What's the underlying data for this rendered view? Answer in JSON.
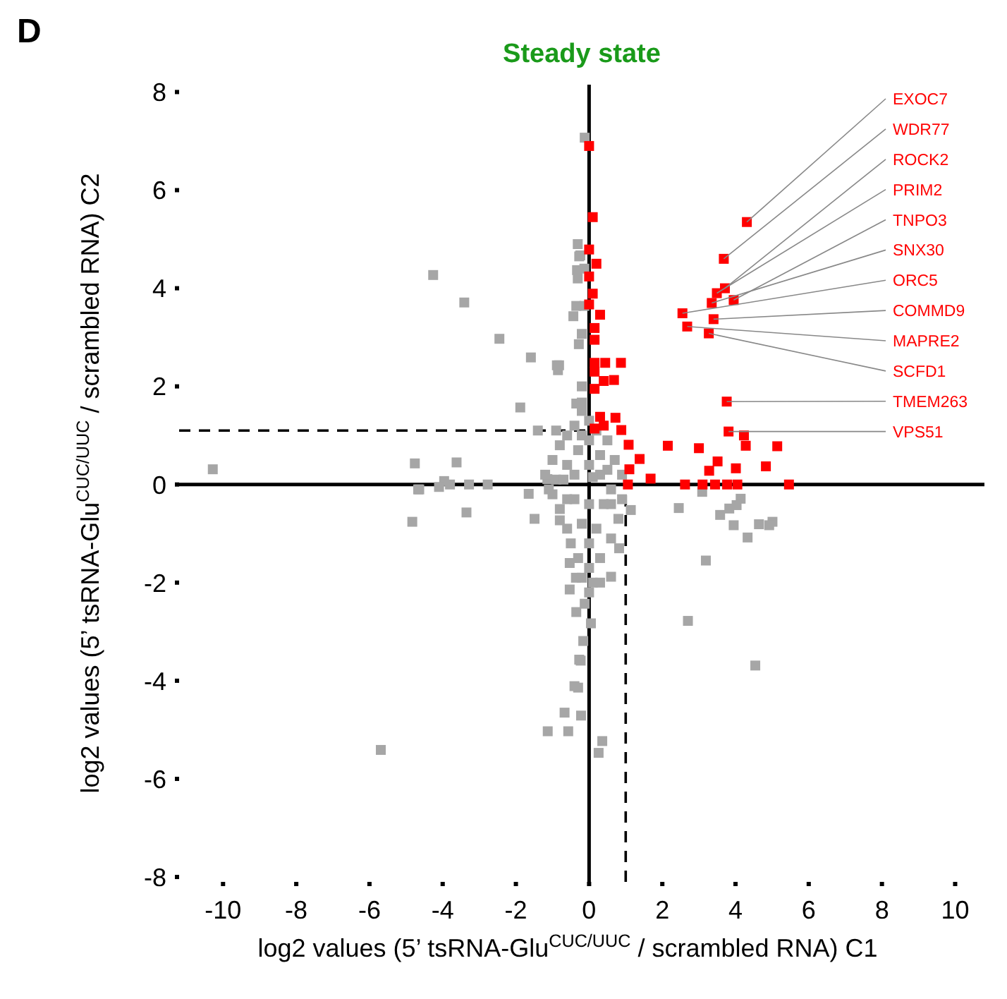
{
  "chart_data": {
    "type": "scatter",
    "title": "Steady state",
    "xlabel": "log2 values (5’ tsRNA-Glu$^{CUC/UUC}$/ scrambled RNA) C1",
    "ylabel": "log2 values (5’ tsRNA-Glu$^{CUC/UUC}$/ scrambled RNA) C2",
    "marker": "square",
    "grid": false,
    "legend": false,
    "xlim": [
      -11.2,
      10.8
    ],
    "xticks": [
      -10,
      -8,
      -6,
      -4,
      -2,
      0,
      2,
      4,
      6,
      8,
      10
    ],
    "ylim": [
      -8.1,
      8.15
    ],
    "yticks": [
      -8,
      -6,
      -4,
      -2,
      0,
      2,
      4,
      6,
      8
    ],
    "ref_lines": [
      {
        "axis": "x",
        "value": 0,
        "color": "#000000",
        "line_style": "solid"
      },
      {
        "axis": "y",
        "value": 0,
        "color": "#000000",
        "line_style": "solid"
      },
      {
        "axis": "x",
        "value": 1,
        "color": "#000000",
        "line_style": "dashed"
      },
      {
        "axis": "y",
        "value": 1.1,
        "color": "#000000",
        "line_style": "dashed"
      }
    ],
    "series": [
      {
        "color": "#a6a6a6",
        "x": [
          -0.31,
          -0.27,
          -4.26,
          -3.41,
          -0.33,
          -0.31,
          -0.13,
          -0.35,
          -0.13,
          -2.45,
          -1.59,
          -0.82,
          -0.85,
          -0.2,
          -0.28,
          -0.2,
          -1.88,
          -0.35,
          -0.2,
          -1.4,
          -0.9,
          -4.76,
          -3.62,
          -0.43,
          -0.88,
          -0.24,
          -0.12,
          -4.67,
          -3.96,
          -3.8,
          -3.28,
          -2.77,
          -4.1,
          -1.65,
          -3.35,
          -4.83,
          -1.49,
          -0.8,
          -1.14,
          2.45,
          3.09,
          3.58,
          3.83,
          4.14,
          4.03,
          3.95,
          4.64,
          5.01,
          4.92,
          4.33,
          3.19,
          2.7,
          4.54,
          1.14,
          0.82,
          0.6,
          -0.53,
          -0.53,
          -0.36,
          0.1,
          -0.12,
          -0.35,
          0.05,
          -0.16,
          -0.27,
          -0.23,
          -0.3,
          -0.4,
          -0.67,
          -0.22,
          -1.13,
          -0.57,
          0.36,
          0.26,
          -10.28,
          -4.64,
          -5.69,
          -1.2,
          -1.0,
          -0.8,
          -0.6,
          -0.4,
          -0.2,
          0,
          0.2,
          0.5,
          0.7,
          0.9,
          -0.9,
          -0.6,
          -0.3,
          0,
          0.3,
          0.5,
          -0.4,
          0,
          0.3,
          -0.2,
          0.1,
          -0.7,
          -1.0,
          -0.8,
          -0.6,
          -0.5,
          -0.3,
          0,
          0.3,
          0.6,
          0.8,
          0.9,
          -0.4,
          0,
          0.4,
          -0.2,
          0.2,
          0,
          -0.6,
          0.6,
          -0.2,
          0.3,
          0.6,
          -1.1,
          0
        ],
        "values": [
          4.9,
          4.65,
          4.27,
          3.71,
          4.37,
          4.2,
          4.4,
          3.64,
          3.64,
          2.97,
          2.59,
          2.43,
          2.33,
          3.07,
          2.86,
          2.0,
          1.57,
          1.65,
          1.67,
          1.1,
          1.1,
          0.43,
          0.45,
          3.43,
          2.43,
          4.67,
          7.07,
          -0.1,
          0.07,
          0,
          0,
          0,
          -0.05,
          -0.19,
          -0.57,
          -0.76,
          -0.7,
          -0.73,
          0.11,
          -0.48,
          -0.15,
          -0.62,
          -0.49,
          -0.29,
          -0.42,
          -0.83,
          -0.81,
          -0.76,
          -0.83,
          -1.08,
          -1.55,
          -2.78,
          -3.69,
          -0.52,
          -1.3,
          -1.88,
          -1.6,
          -2.14,
          -1.9,
          -2.0,
          -2.43,
          -2.6,
          -2.83,
          -3.19,
          -3.57,
          -3.59,
          -4.14,
          -4.11,
          -4.65,
          -4.71,
          -5.03,
          -5.03,
          -5.23,
          -5.47,
          0.31,
          -0.1,
          -5.41,
          0.2,
          0.5,
          0.8,
          1.0,
          1.2,
          1.5,
          1.3,
          1.1,
          0.9,
          0.5,
          0.2,
          0.1,
          0.4,
          0.7,
          0.9,
          0.6,
          0.3,
          0.2,
          0.4,
          0.2,
          1.0,
          0.15,
          0.1,
          -0.2,
          -0.5,
          -0.9,
          -1.2,
          -1.5,
          -1.7,
          -1.5,
          -1.1,
          -0.7,
          -0.3,
          -0.3,
          -0.4,
          -0.4,
          -0.8,
          -0.9,
          -1.2,
          -0.3,
          -0.4,
          -1.9,
          -2.0,
          -0.1,
          -0.1,
          -2.2
        ]
      },
      {
        "color": "#ff0000",
        "x": [
          4.31,
          3.68,
          3.71,
          3.49,
          3.95,
          3.35,
          2.55,
          3.4,
          2.68,
          3.27,
          3.76,
          3.81,
          0,
          0.1,
          0,
          0.2,
          0,
          0.1,
          0,
          0.3,
          0.15,
          0.15,
          0.15,
          0.44,
          0.87,
          0.4,
          0.68,
          0.15,
          0.15,
          0.3,
          0.72,
          0.15,
          0.4,
          0.88,
          1.08,
          1.38,
          1.1,
          1.68,
          1.06,
          2.15,
          3.0,
          2.62,
          3.1,
          3.44,
          3.77,
          4.05,
          5.46,
          3.51,
          3.28,
          4.01,
          4.83,
          4.23,
          4.28,
          5.14
        ],
        "values": [
          5.35,
          4.6,
          4.0,
          3.9,
          3.76,
          3.7,
          3.49,
          3.37,
          3.22,
          3.08,
          1.69,
          1.08,
          6.9,
          5.45,
          4.79,
          4.5,
          4.24,
          3.89,
          3.67,
          3.46,
          3.19,
          2.95,
          2.48,
          2.48,
          2.48,
          2.11,
          2.13,
          2.3,
          1.95,
          1.38,
          1.36,
          1.14,
          1.2,
          1.11,
          0.81,
          0.52,
          0.31,
          0.12,
          0,
          0.79,
          0.74,
          0,
          0,
          0,
          0,
          0,
          0,
          0.47,
          0.28,
          0.33,
          0.37,
          1.0,
          0.79,
          0.78
        ]
      }
    ],
    "annotations": [
      "D",
      {
        "text": "EXOC7",
        "x": 4.31,
        "y": 5.35
      },
      {
        "text": "WDR77",
        "x": 3.68,
        "y": 4.6
      },
      {
        "text": "ROCK2",
        "x": 3.71,
        "y": 4.0
      },
      {
        "text": "PRIM2",
        "x": 3.49,
        "y": 3.9
      },
      {
        "text": "TNPO3",
        "x": 3.95,
        "y": 3.76
      },
      {
        "text": "SNX30",
        "x": 3.35,
        "y": 3.7
      },
      {
        "text": "ORC5",
        "x": 2.55,
        "y": 3.49
      },
      {
        "text": "COMMD9",
        "x": 3.4,
        "y": 3.37
      },
      {
        "text": "MAPRE2",
        "x": 2.68,
        "y": 3.22
      },
      {
        "text": "SCFD1",
        "x": 3.27,
        "y": 3.08
      },
      {
        "text": "TMEM263",
        "x": 3.76,
        "y": 1.69
      },
      {
        "text": "VPS51",
        "x": 3.81,
        "y": 1.08
      }
    ]
  }
}
